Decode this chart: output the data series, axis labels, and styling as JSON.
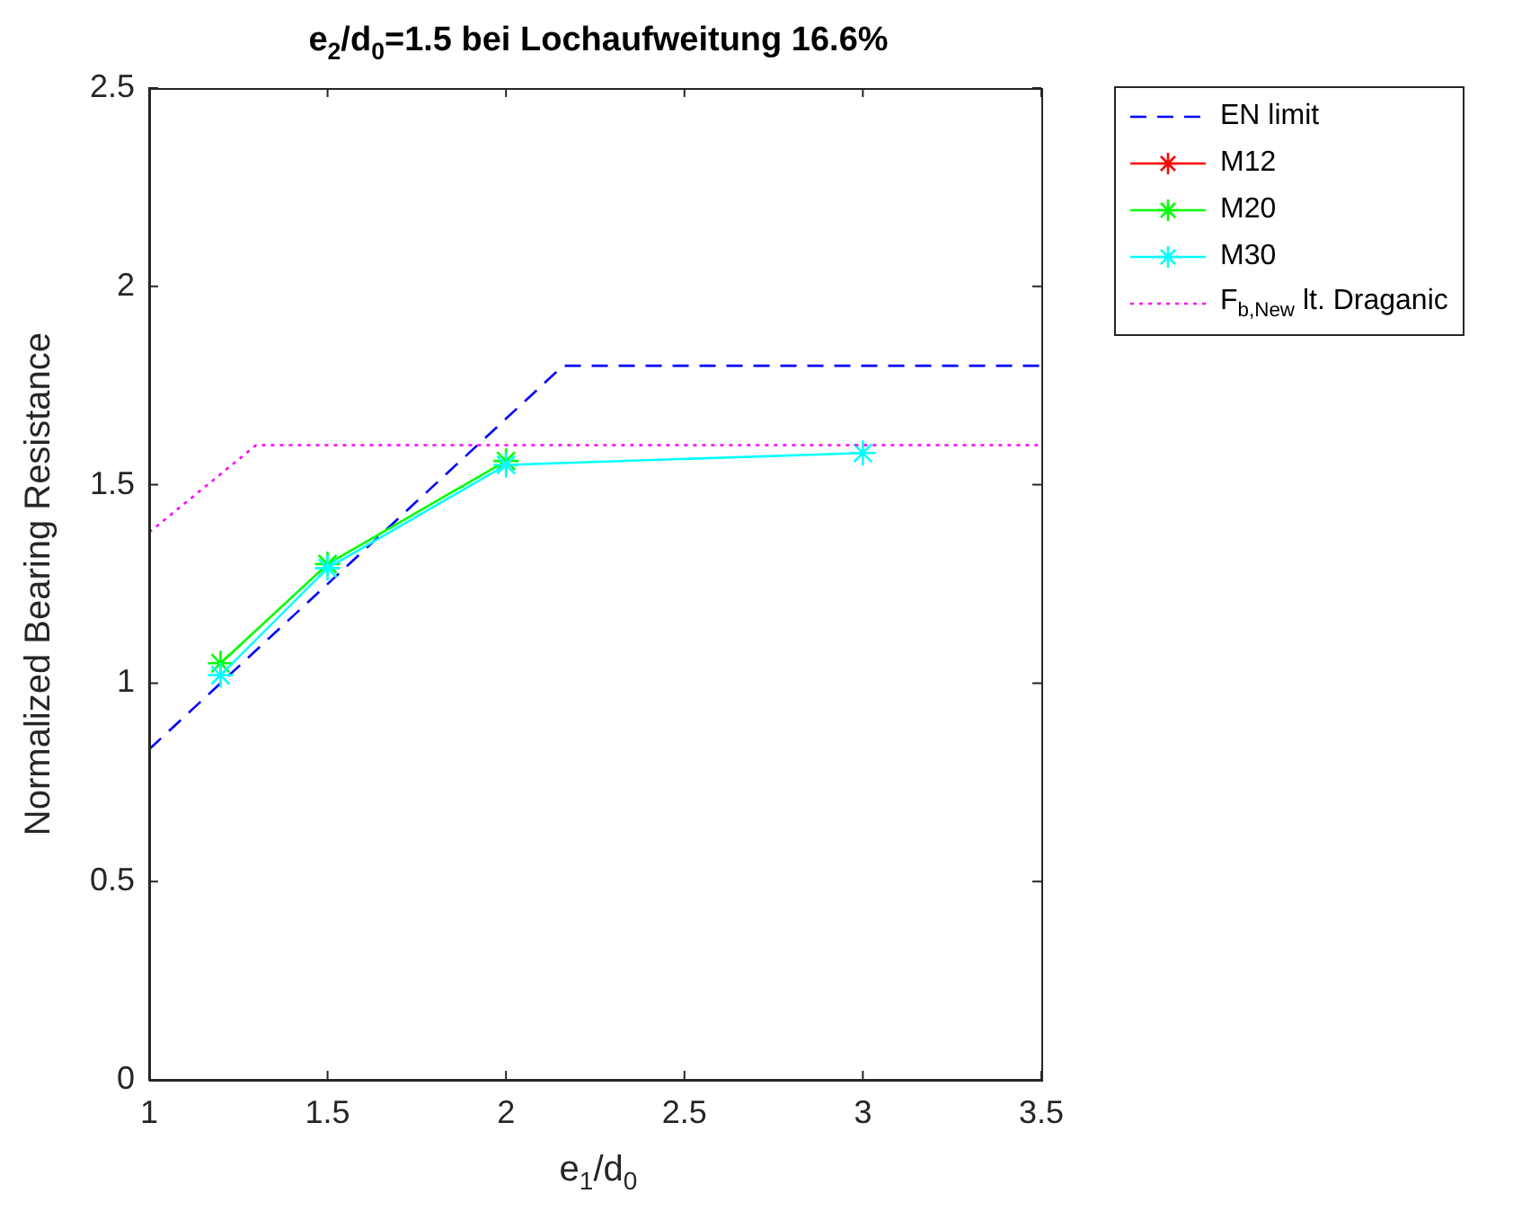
{
  "chart_data": {
    "type": "line",
    "title": "e$_{2}$/d$_{0}$=1.5 bei Lochaufweitung 16.6%",
    "xlabel": "e$_{1}$/d$_{0}$",
    "ylabel": "Normalized Bearing Resistance",
    "xlim": [
      1,
      3.5
    ],
    "xticks": [
      1,
      1.5,
      2,
      2.5,
      3,
      3.5
    ],
    "ylim": [
      0,
      2.5
    ],
    "yticks": [
      0,
      0.5,
      1,
      1.5,
      2,
      2.5
    ],
    "grid": false,
    "legend": "top right",
    "series": [
      {
        "name": "EN limit",
        "color": "#0000ff",
        "line_style": "dashed",
        "marker": "none",
        "x": [
          1,
          2.16,
          3.5
        ],
        "values": [
          0.833,
          1.8,
          1.8
        ]
      },
      {
        "name": "M12",
        "color": "#ff0000",
        "line_style": "solid",
        "marker": "cross"
      },
      {
        "name": "M20",
        "color": "#00ff00",
        "line_style": "solid",
        "marker": "cross",
        "x": [
          1.2,
          1.5,
          2
        ],
        "values": [
          1.05,
          1.3,
          1.56
        ]
      },
      {
        "name": "M30",
        "color": "#00ffff",
        "line_style": "solid",
        "marker": "cross",
        "x": [
          1.2,
          1.5,
          2,
          3
        ],
        "values": [
          1.02,
          1.29,
          1.55,
          1.58
        ]
      },
      {
        "name": "F$_{b,New}$ lt. Draganic",
        "color": "#ff00ff",
        "line_style": "dotted",
        "marker": "none",
        "x": [
          1,
          1.3,
          3.5
        ],
        "values": [
          1.38,
          1.6,
          1.6
        ]
      }
    ]
  }
}
